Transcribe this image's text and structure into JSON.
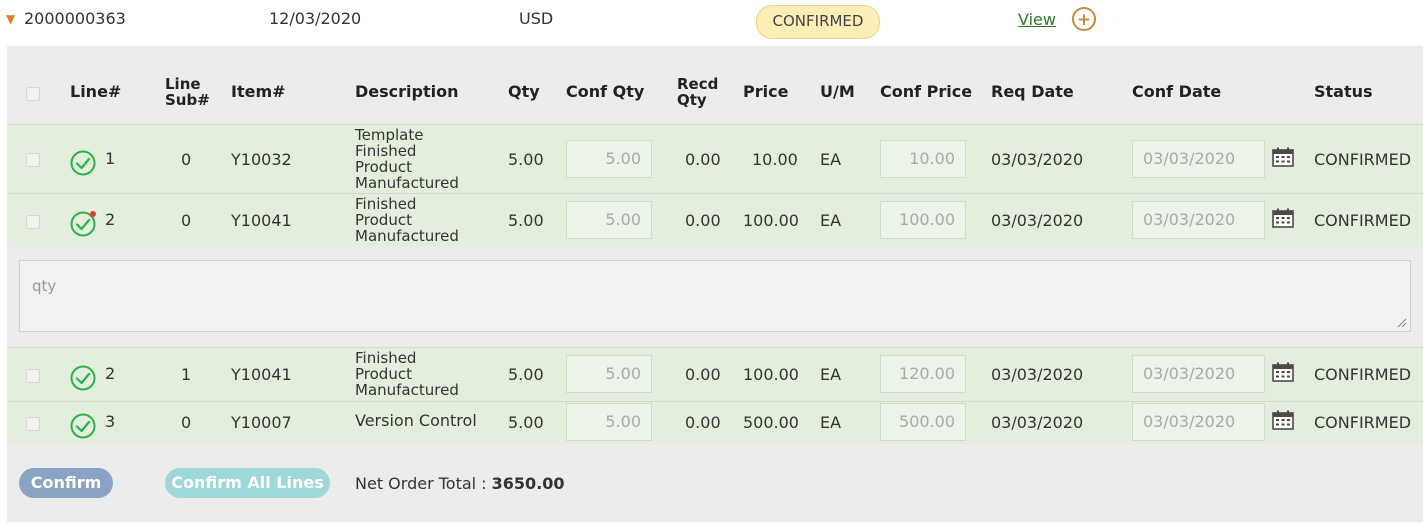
{
  "order": {
    "number": "2000000363",
    "date": "12/03/2020",
    "currency": "USD",
    "status": "CONFIRMED",
    "view_label": "View",
    "add_label": "+"
  },
  "table": {
    "headers": {
      "line": "Line#",
      "line_sub_1": "Line",
      "line_sub_2": "Sub#",
      "item": "Item#",
      "description": "Description",
      "qty": "Qty",
      "conf_qty": "Conf Qty",
      "recd_1": "Recd",
      "recd_2": "Qty",
      "price": "Price",
      "um": "U/M",
      "conf_price": "Conf Price",
      "req_date": "Req Date",
      "conf_date": "Conf Date",
      "status": "Status"
    },
    "rows": [
      {
        "line": "1",
        "sub": "0",
        "item": "Y10032",
        "desc": [
          "Template",
          "Finished",
          "Product",
          "Manufactured"
        ],
        "qty": "5.00",
        "conf_qty": "5.00",
        "recd_qty": "0.00",
        "price": "10.00",
        "um": "EA",
        "conf_price": "10.00",
        "req_date": "03/03/2020",
        "conf_date": "03/03/2020",
        "status": "CONFIRMED",
        "has_note": false
      },
      {
        "line": "2",
        "sub": "0",
        "item": "Y10041",
        "desc": [
          "Finished",
          "Product",
          "Manufactured"
        ],
        "qty": "5.00",
        "conf_qty": "5.00",
        "recd_qty": "0.00",
        "price": "100.00",
        "um": "EA",
        "conf_price": "100.00",
        "req_date": "03/03/2020",
        "conf_date": "03/03/2020",
        "status": "CONFIRMED",
        "has_note": true
      },
      {
        "line": "2",
        "sub": "1",
        "item": "Y10041",
        "desc": [
          "Finished",
          "Product",
          "Manufactured"
        ],
        "qty": "5.00",
        "conf_qty": "5.00",
        "recd_qty": "0.00",
        "price": "100.00",
        "um": "EA",
        "conf_price": "120.00",
        "req_date": "03/03/2020",
        "conf_date": "03/03/2020",
        "status": "CONFIRMED",
        "has_note": false
      },
      {
        "line": "3",
        "sub": "0",
        "item": "Y10007",
        "desc": [
          "Version Control"
        ],
        "qty": "5.00",
        "conf_qty": "5.00",
        "recd_qty": "0.00",
        "price": "500.00",
        "um": "EA",
        "conf_price": "500.00",
        "req_date": "03/03/2020",
        "conf_date": "03/03/2020",
        "status": "CONFIRMED",
        "has_note": false
      }
    ]
  },
  "note": {
    "placeholder": "qty"
  },
  "footer": {
    "confirm_label": "Confirm",
    "confirm_all_label": "Confirm All Lines",
    "net_total_label": "Net Order Total : ",
    "net_total_value": "3650.00"
  },
  "colors": {
    "accent_orange": "#e07b2a",
    "row_green": "#e3efdc",
    "check_green": "#2bb24c",
    "confirm_button": "#8aa3c2",
    "confirm_all_button": "#9ed8d8"
  }
}
